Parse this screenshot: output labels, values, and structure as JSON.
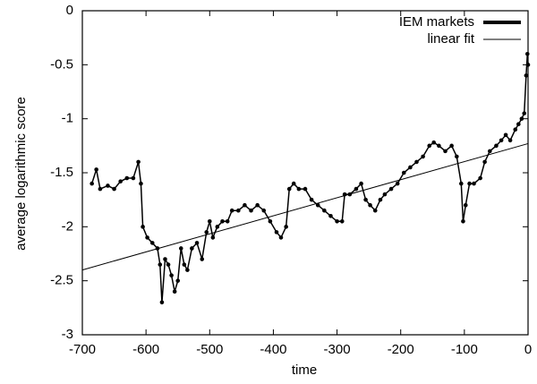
{
  "chart_data": {
    "type": "line",
    "xlabel": "time",
    "ylabel": "average logarithmic score",
    "xlim": [
      -700,
      0
    ],
    "ylim": [
      -3,
      0
    ],
    "xticks": [
      -700,
      -600,
      -500,
      -400,
      -300,
      -200,
      -100,
      0
    ],
    "yticks": [
      0,
      -0.5,
      -1,
      -1.5,
      -2,
      -2.5,
      -3
    ],
    "legend": "upper right",
    "series": [
      {
        "name": "IEM markets",
        "color": "#000000",
        "markers": true,
        "x": [
          -685,
          -678,
          -672,
          -660,
          -650,
          -640,
          -630,
          -620,
          -612,
          -608,
          -605,
          -598,
          -590,
          -582,
          -578,
          -575,
          -570,
          -565,
          -560,
          -555,
          -550,
          -545,
          -540,
          -535,
          -528,
          -520,
          -512,
          -505,
          -500,
          -495,
          -488,
          -480,
          -472,
          -465,
          -455,
          -445,
          -435,
          -425,
          -415,
          -405,
          -395,
          -388,
          -380,
          -375,
          -368,
          -360,
          -350,
          -340,
          -330,
          -320,
          -310,
          -300,
          -292,
          -288,
          -280,
          -270,
          -262,
          -255,
          -248,
          -240,
          -232,
          -225,
          -215,
          -205,
          -195,
          -185,
          -175,
          -165,
          -155,
          -148,
          -140,
          -130,
          -120,
          -112,
          -105,
          -102,
          -98,
          -92,
          -85,
          -75,
          -68,
          -60,
          -50,
          -42,
          -35,
          -28,
          -20,
          -15,
          -10,
          -6,
          -3,
          -1,
          0
        ],
        "values": [
          -1.6,
          -1.47,
          -1.65,
          -1.62,
          -1.65,
          -1.58,
          -1.55,
          -1.55,
          -1.4,
          -1.6,
          -2.0,
          -2.1,
          -2.15,
          -2.2,
          -2.35,
          -2.7,
          -2.3,
          -2.35,
          -2.45,
          -2.6,
          -2.5,
          -2.2,
          -2.35,
          -2.4,
          -2.2,
          -2.15,
          -2.3,
          -2.05,
          -1.95,
          -2.1,
          -2.0,
          -1.95,
          -1.95,
          -1.85,
          -1.85,
          -1.8,
          -1.85,
          -1.8,
          -1.85,
          -1.95,
          -2.05,
          -2.1,
          -2.0,
          -1.65,
          -1.6,
          -1.65,
          -1.65,
          -1.75,
          -1.8,
          -1.85,
          -1.9,
          -1.95,
          -1.95,
          -1.7,
          -1.7,
          -1.65,
          -1.6,
          -1.75,
          -1.8,
          -1.85,
          -1.75,
          -1.7,
          -1.65,
          -1.6,
          -1.5,
          -1.45,
          -1.4,
          -1.35,
          -1.25,
          -1.22,
          -1.25,
          -1.3,
          -1.25,
          -1.35,
          -1.6,
          -1.95,
          -1.8,
          -1.6,
          -1.6,
          -1.55,
          -1.4,
          -1.3,
          -1.25,
          -1.2,
          -1.15,
          -1.2,
          -1.1,
          -1.05,
          -1.0,
          -0.95,
          -0.6,
          -0.4,
          -0.5
        ]
      },
      {
        "name": "linear fit",
        "color": "#000000",
        "markers": false,
        "x": [
          -700,
          0
        ],
        "values": [
          -2.4,
          -1.23
        ]
      }
    ]
  }
}
